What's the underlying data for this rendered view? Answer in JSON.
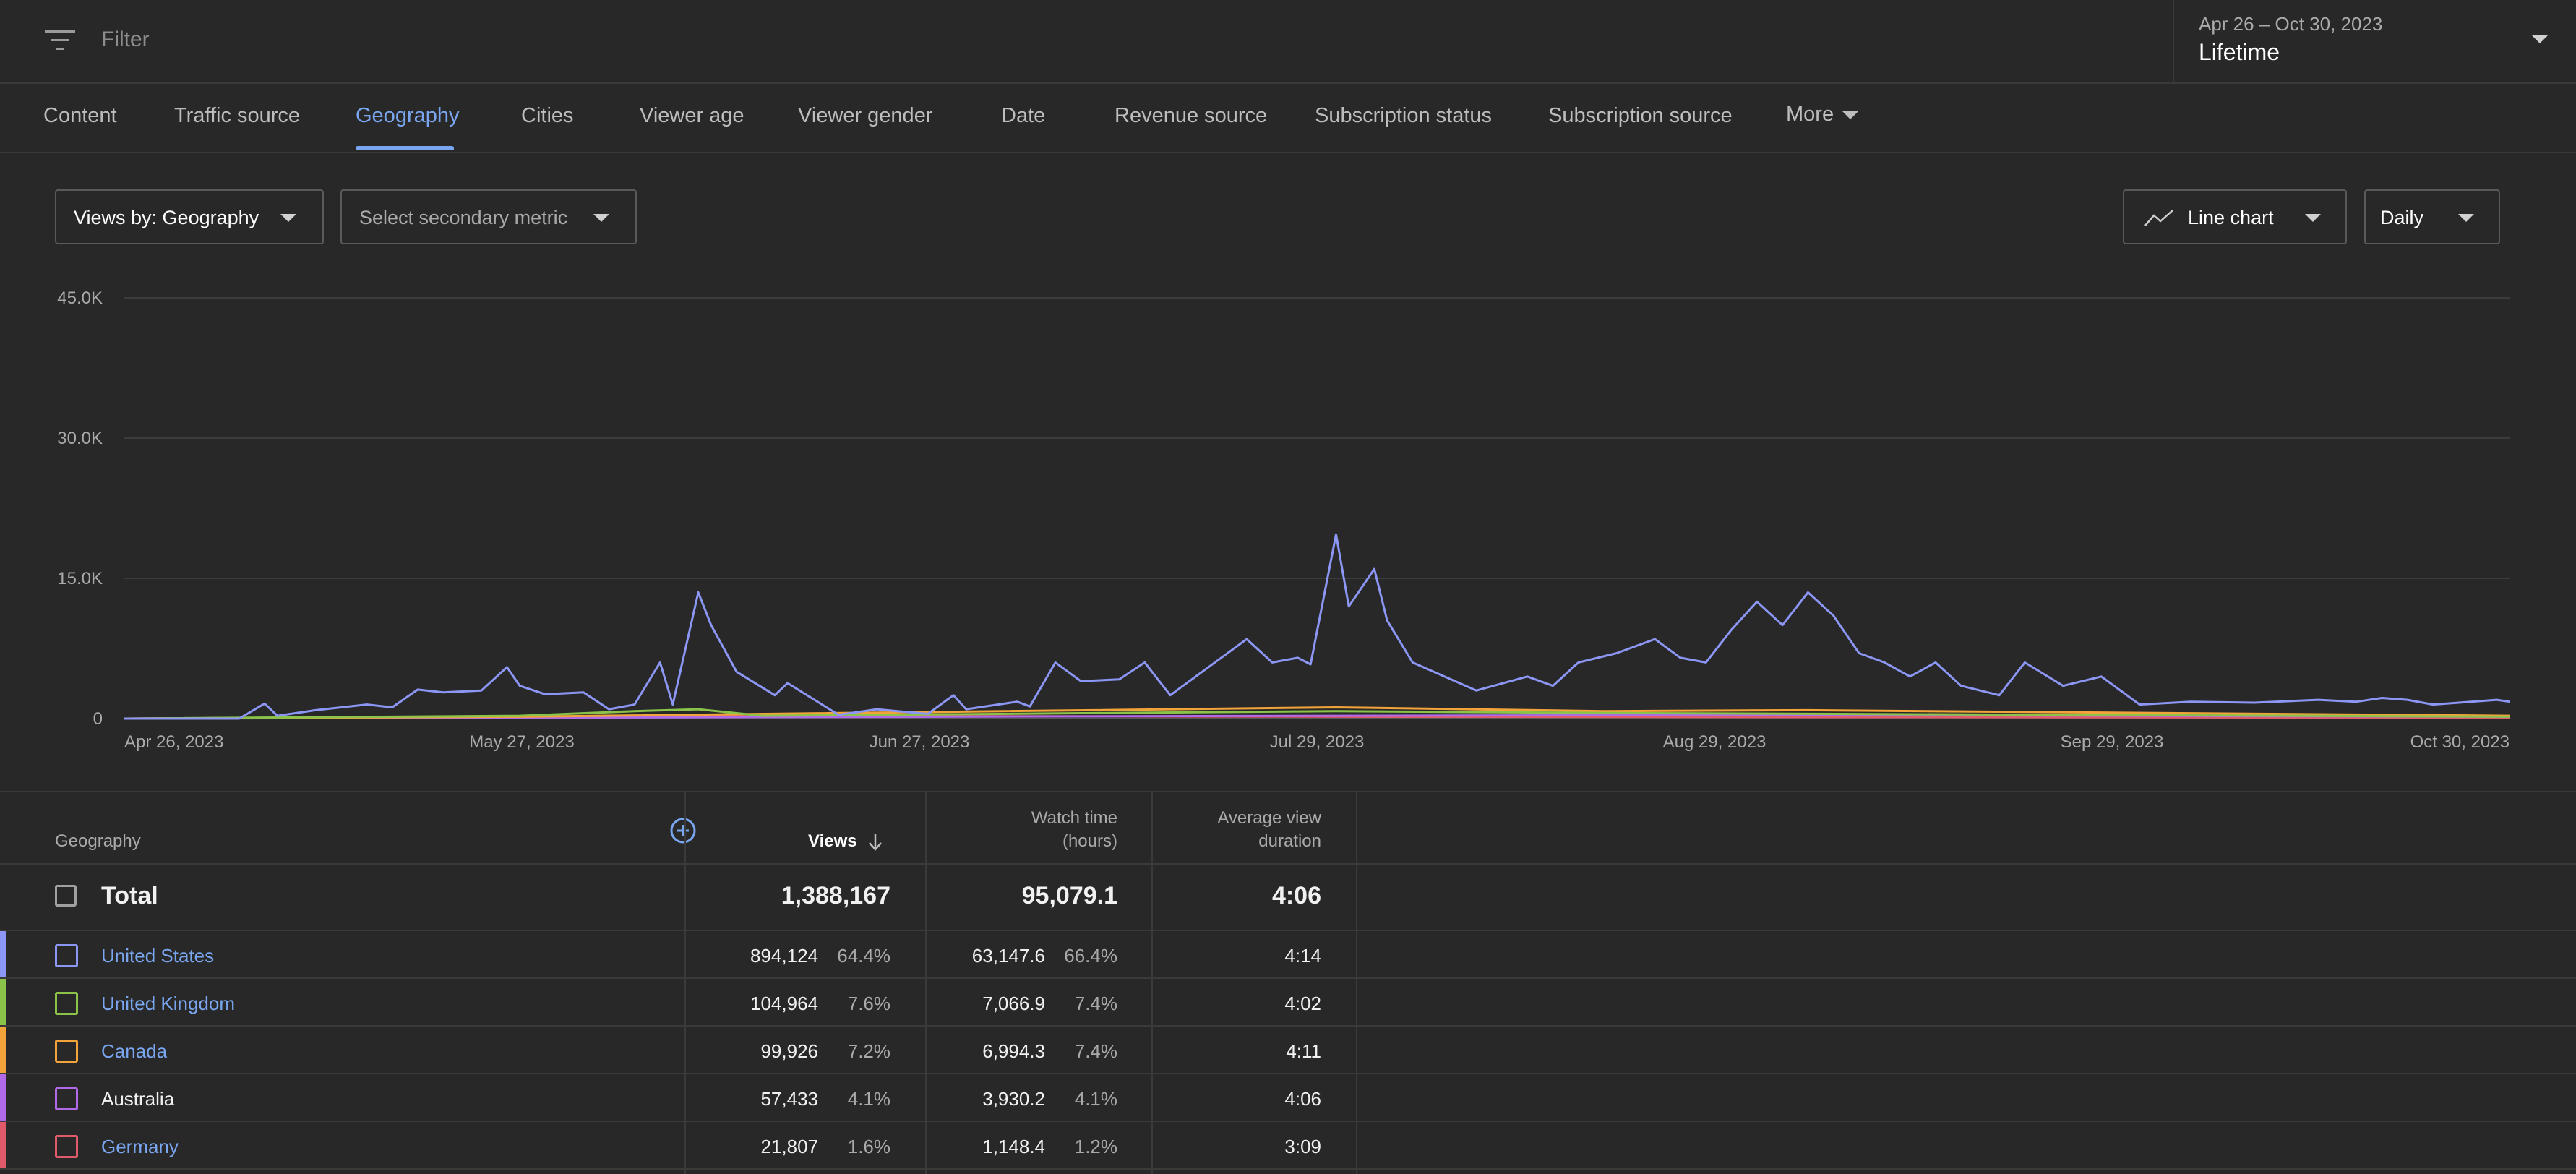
{
  "filter": {
    "placeholder": "Filter"
  },
  "date": {
    "range": "Apr 26 – Oct 30, 2023",
    "label": "Lifetime"
  },
  "tabs": [
    {
      "label": "Content",
      "active": false
    },
    {
      "label": "Traffic source",
      "active": false
    },
    {
      "label": "Geography",
      "active": true
    },
    {
      "label": "Cities",
      "active": false
    },
    {
      "label": "Viewer age",
      "active": false
    },
    {
      "label": "Viewer gender",
      "active": false
    },
    {
      "label": "Date",
      "active": false
    },
    {
      "label": "Revenue source",
      "active": false
    },
    {
      "label": "Subscription status",
      "active": false
    },
    {
      "label": "Subscription source",
      "active": false
    },
    {
      "label": "More",
      "active": false
    }
  ],
  "controls": {
    "primary_metric": "Views by: Geography",
    "secondary_metric": "Select secondary metric",
    "chart_type": "Line chart",
    "interval": "Daily"
  },
  "colors": {
    "accent": "#7aa6f0",
    "us": "#8c96f5",
    "uk": "#8bc34a",
    "canada": "#f2a33a",
    "australia": "#b06ae8",
    "germany": "#e05a6a",
    "background": "#282828"
  },
  "chart_data": {
    "type": "line",
    "y_ticks": [
      "0",
      "15.0K",
      "30.0K",
      "45.0K"
    ],
    "ylim": [
      0,
      45000
    ],
    "x_ticks": [
      "Apr 26, 2023",
      "May 27, 2023",
      "Jun 27, 2023",
      "Jul 29, 2023",
      "Aug 29, 2023",
      "Sep 29, 2023",
      "Oct 30, 2023"
    ],
    "x_start": "2023-04-26",
    "x_end": "2023-10-30",
    "grid": true,
    "series": [
      {
        "name": "United States",
        "color": "#8c96f5",
        "points": [
          [
            "2023-04-26",
            0
          ],
          [
            "2023-05-05",
            0
          ],
          [
            "2023-05-07",
            1600
          ],
          [
            "2023-05-08",
            300
          ],
          [
            "2023-05-11",
            900
          ],
          [
            "2023-05-15",
            1500
          ],
          [
            "2023-05-17",
            1200
          ],
          [
            "2023-05-19",
            3100
          ],
          [
            "2023-05-21",
            2800
          ],
          [
            "2023-05-24",
            3000
          ],
          [
            "2023-05-26",
            5500
          ],
          [
            "2023-05-27",
            3500
          ],
          [
            "2023-05-29",
            2600
          ],
          [
            "2023-06-01",
            2800
          ],
          [
            "2023-06-03",
            1000
          ],
          [
            "2023-06-05",
            1500
          ],
          [
            "2023-06-07",
            6000
          ],
          [
            "2023-06-08",
            1500
          ],
          [
            "2023-06-10",
            13500
          ],
          [
            "2023-06-11",
            10000
          ],
          [
            "2023-06-13",
            5000
          ],
          [
            "2023-06-16",
            2500
          ],
          [
            "2023-06-17",
            3800
          ],
          [
            "2023-06-21",
            400
          ],
          [
            "2023-06-24",
            1000
          ],
          [
            "2023-06-28",
            500
          ],
          [
            "2023-06-30",
            2500
          ],
          [
            "2023-07-01",
            1000
          ],
          [
            "2023-07-05",
            1800
          ],
          [
            "2023-07-06",
            1300
          ],
          [
            "2023-07-08",
            6000
          ],
          [
            "2023-07-10",
            4000
          ],
          [
            "2023-07-13",
            4200
          ],
          [
            "2023-07-15",
            6000
          ],
          [
            "2023-07-17",
            2500
          ],
          [
            "2023-07-21",
            6500
          ],
          [
            "2023-07-23",
            8500
          ],
          [
            "2023-07-25",
            6000
          ],
          [
            "2023-07-27",
            6500
          ],
          [
            "2023-07-28",
            5800
          ],
          [
            "2023-07-30",
            19700
          ],
          [
            "2023-07-31",
            12000
          ],
          [
            "2023-08-02",
            16000
          ],
          [
            "2023-08-03",
            10500
          ],
          [
            "2023-08-05",
            6000
          ],
          [
            "2023-08-10",
            3000
          ],
          [
            "2023-08-14",
            4500
          ],
          [
            "2023-08-16",
            3500
          ],
          [
            "2023-08-18",
            6000
          ],
          [
            "2023-08-21",
            7000
          ],
          [
            "2023-08-24",
            8500
          ],
          [
            "2023-08-26",
            6500
          ],
          [
            "2023-08-28",
            6000
          ],
          [
            "2023-08-30",
            9500
          ],
          [
            "2023-09-01",
            12500
          ],
          [
            "2023-09-03",
            10000
          ],
          [
            "2023-09-05",
            13500
          ],
          [
            "2023-09-07",
            11000
          ],
          [
            "2023-09-09",
            7000
          ],
          [
            "2023-09-11",
            6000
          ],
          [
            "2023-09-13",
            4500
          ],
          [
            "2023-09-15",
            6000
          ],
          [
            "2023-09-17",
            3500
          ],
          [
            "2023-09-20",
            2500
          ],
          [
            "2023-09-22",
            6000
          ],
          [
            "2023-09-25",
            3500
          ],
          [
            "2023-09-28",
            4500
          ],
          [
            "2023-10-01",
            1500
          ],
          [
            "2023-10-05",
            1800
          ],
          [
            "2023-10-10",
            1700
          ],
          [
            "2023-10-15",
            2000
          ],
          [
            "2023-10-18",
            1800
          ],
          [
            "2023-10-20",
            2200
          ],
          [
            "2023-10-22",
            2000
          ],
          [
            "2023-10-24",
            1500
          ],
          [
            "2023-10-27",
            1800
          ],
          [
            "2023-10-29",
            2000
          ],
          [
            "2023-10-30",
            1800
          ]
        ]
      },
      {
        "name": "United Kingdom",
        "color": "#8bc34a",
        "points": [
          [
            "2023-04-26",
            0
          ],
          [
            "2023-05-27",
            300
          ],
          [
            "2023-06-05",
            800
          ],
          [
            "2023-06-10",
            1000
          ],
          [
            "2023-06-15",
            300
          ],
          [
            "2023-07-30",
            800
          ],
          [
            "2023-08-20",
            600
          ],
          [
            "2023-10-30",
            200
          ]
        ]
      },
      {
        "name": "Canada",
        "color": "#f2a33a",
        "points": [
          [
            "2023-04-26",
            0
          ],
          [
            "2023-05-27",
            200
          ],
          [
            "2023-07-30",
            1200
          ],
          [
            "2023-08-20",
            800
          ],
          [
            "2023-09-05",
            900
          ],
          [
            "2023-10-30",
            300
          ]
        ]
      },
      {
        "name": "Australia",
        "color": "#b06ae8",
        "points": [
          [
            "2023-04-26",
            0
          ],
          [
            "2023-07-30",
            300
          ],
          [
            "2023-09-05",
            400
          ],
          [
            "2023-10-30",
            200
          ]
        ]
      },
      {
        "name": "Germany",
        "color": "#e05a6a",
        "points": [
          [
            "2023-04-26",
            0
          ],
          [
            "2023-06-10",
            300
          ],
          [
            "2023-07-30",
            200
          ],
          [
            "2023-10-30",
            100
          ]
        ]
      }
    ]
  },
  "table": {
    "headers": {
      "geography": "Geography",
      "views": "Views",
      "watch_time": [
        "Watch time",
        "(hours)"
      ],
      "avg_duration": [
        "Average view",
        "duration"
      ]
    },
    "total": {
      "label": "Total",
      "views": "1,388,167",
      "watch_time": "95,079.1",
      "avg_duration": "4:06"
    },
    "rows": [
      {
        "name": "United States",
        "link": true,
        "color": "#8c96f5",
        "views": "894,124",
        "views_pct": "64.4%",
        "watch_time": "63,147.6",
        "watch_pct": "66.4%",
        "avg_duration": "4:14"
      },
      {
        "name": "United Kingdom",
        "link": true,
        "color": "#8bc34a",
        "views": "104,964",
        "views_pct": "7.6%",
        "watch_time": "7,066.9",
        "watch_pct": "7.4%",
        "avg_duration": "4:02"
      },
      {
        "name": "Canada",
        "link": true,
        "color": "#f2a33a",
        "views": "99,926",
        "views_pct": "7.2%",
        "watch_time": "6,994.3",
        "watch_pct": "7.4%",
        "avg_duration": "4:11"
      },
      {
        "name": "Australia",
        "link": false,
        "color": "#b06ae8",
        "views": "57,433",
        "views_pct": "4.1%",
        "watch_time": "3,930.2",
        "watch_pct": "4.1%",
        "avg_duration": "4:06"
      },
      {
        "name": "Germany",
        "link": true,
        "color": "#e05a6a",
        "views": "21,807",
        "views_pct": "1.6%",
        "watch_time": "1,148.4",
        "watch_pct": "1.2%",
        "avg_duration": "3:09"
      }
    ]
  }
}
